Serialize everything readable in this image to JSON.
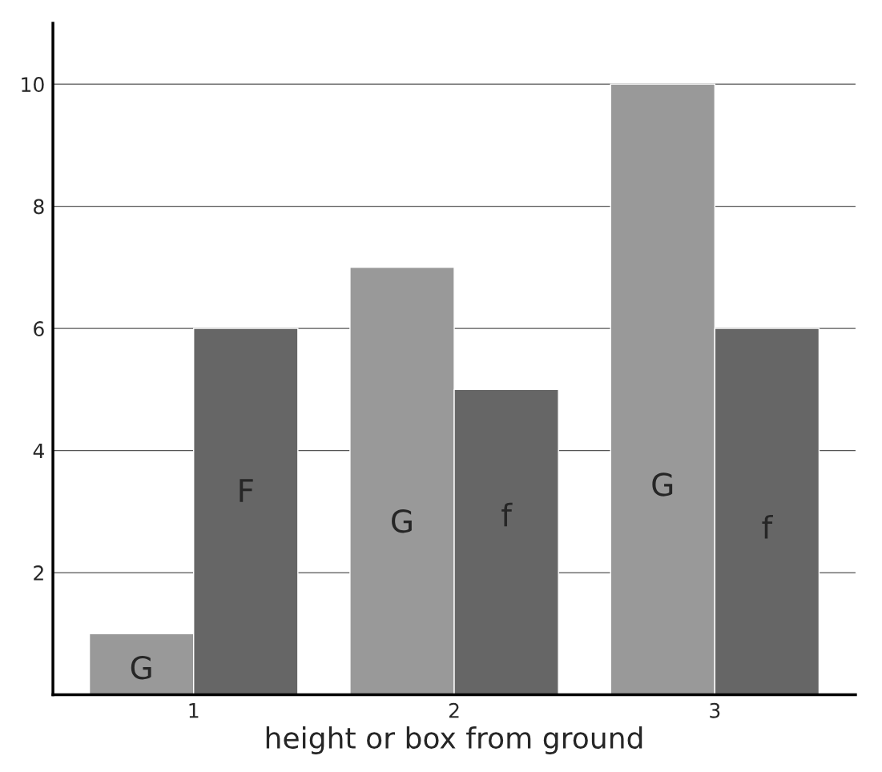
{
  "chart_data": {
    "type": "bar",
    "xlabel": "height or box from ground",
    "categories": [
      "1",
      "2",
      "3"
    ],
    "series": [
      {
        "color": "#999999",
        "values": [
          1,
          7,
          10
        ]
      },
      {
        "color": "#666666",
        "values": [
          6,
          5,
          6
        ]
      }
    ],
    "ylim": [
      0,
      11
    ],
    "yticks": [
      2,
      4,
      6,
      8,
      10
    ],
    "grid": "y",
    "legend": false,
    "annotations": [
      {
        "text": "G",
        "x": "1",
        "y": 0.4
      },
      {
        "text": "F",
        "x": "1",
        "y": 3.3
      },
      {
        "text": "G",
        "x": "2",
        "y": 2.8
      },
      {
        "text": "f",
        "x": "2",
        "y": 2.9
      },
      {
        "text": "G",
        "x": "3",
        "y": 3.4
      },
      {
        "text": "f",
        "x": "3",
        "y": 2.7
      }
    ]
  }
}
